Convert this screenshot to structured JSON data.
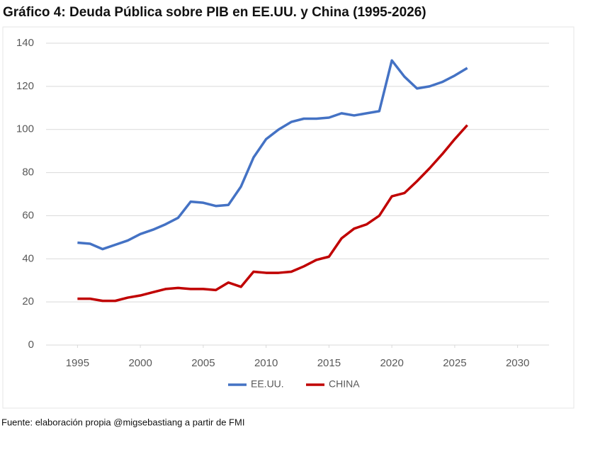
{
  "chart_data": {
    "type": "line",
    "title": "Gráfico 4: Deuda Pública sobre PIB en EE.UU. y China (1995-2026)",
    "source": "Fuente: elaboración propia @migsebastiang a partir de FMI",
    "x": [
      1995,
      1996,
      1997,
      1998,
      1999,
      2000,
      2001,
      2002,
      2003,
      2004,
      2005,
      2006,
      2007,
      2008,
      2009,
      2010,
      2011,
      2012,
      2013,
      2014,
      2015,
      2016,
      2017,
      2018,
      2019,
      2020,
      2021,
      2022,
      2023,
      2024,
      2025,
      2026
    ],
    "series": [
      {
        "name": "EE.UU.",
        "color": "#4472c4",
        "values": [
          47.5,
          47,
          44.5,
          46.5,
          48.5,
          51.5,
          53.5,
          56,
          59,
          66.5,
          66,
          64.5,
          65,
          73.5,
          87,
          95.5,
          100,
          103.5,
          105,
          105,
          105.5,
          107.5,
          106.5,
          107.5,
          108.5,
          132,
          124.5,
          119,
          120,
          122,
          125,
          128.5
        ]
      },
      {
        "name": "CHINA",
        "color": "#c00000",
        "values": [
          21.5,
          21.5,
          20.5,
          20.5,
          22,
          23,
          24.5,
          26,
          26.5,
          26,
          26,
          25.5,
          29,
          27,
          34,
          33.5,
          33.5,
          34,
          36.5,
          39.5,
          41,
          49.5,
          54,
          56,
          60,
          69,
          70.5,
          76,
          82,
          88.5,
          95.5,
          102
        ]
      }
    ],
    "xlim": [
      1992.5,
      2032.5
    ],
    "xticks": [
      1995,
      2000,
      2005,
      2010,
      2015,
      2020,
      2025,
      2030
    ],
    "ylim": [
      0,
      140
    ],
    "yticks": [
      0,
      20,
      40,
      60,
      80,
      100,
      120,
      140
    ],
    "grid": true,
    "legend": "bottom"
  }
}
